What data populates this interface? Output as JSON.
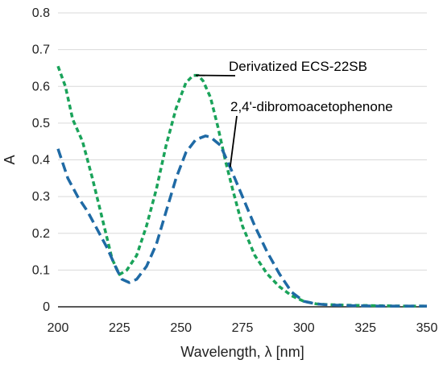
{
  "chart_data": {
    "type": "line",
    "xlabel": "Wavelength, λ [nm]",
    "ylabel": "A",
    "xlim": [
      200,
      350
    ],
    "ylim": [
      0,
      0.8
    ],
    "x_ticks": [
      "200",
      "225",
      "250",
      "275",
      "300",
      "325",
      "350"
    ],
    "y_ticks": [
      "0",
      "0.1",
      "0.2",
      "0.3",
      "0.4",
      "0.5",
      "0.6",
      "0.7",
      "0.8"
    ],
    "grid": "horizontal",
    "legend": "none",
    "series": [
      {
        "name": "Derivatized ECS-22SB",
        "color": "#1aa35a",
        "style": "dashed",
        "x": [
          200,
          203,
          206,
          210,
          214,
          218,
          222,
          225,
          228,
          232,
          236,
          240,
          244,
          248,
          252,
          255,
          257,
          259,
          262,
          265,
          268,
          271,
          275,
          280,
          285,
          290,
          295,
          300,
          305,
          310,
          320,
          330,
          340,
          350
        ],
        "y": [
          0.655,
          0.6,
          0.51,
          0.45,
          0.35,
          0.24,
          0.13,
          0.088,
          0.1,
          0.14,
          0.22,
          0.32,
          0.44,
          0.54,
          0.61,
          0.63,
          0.63,
          0.615,
          0.57,
          0.49,
          0.4,
          0.32,
          0.22,
          0.14,
          0.09,
          0.055,
          0.03,
          0.015,
          0.008,
          0.006,
          0.004,
          0.003,
          0.002,
          0.002
        ]
      },
      {
        "name": "2,4'-dibromoacetophenone",
        "color": "#1f6aa5",
        "style": "dashed",
        "x": [
          200,
          204,
          208,
          212,
          216,
          220,
          224,
          226,
          229,
          232,
          236,
          240,
          244,
          248,
          252,
          256,
          260,
          262,
          266,
          270,
          275,
          280,
          285,
          290,
          295,
          300,
          305,
          310,
          320,
          330,
          340,
          350
        ],
        "y": [
          0.43,
          0.35,
          0.3,
          0.26,
          0.21,
          0.16,
          0.1,
          0.075,
          0.066,
          0.075,
          0.11,
          0.17,
          0.26,
          0.35,
          0.42,
          0.455,
          0.465,
          0.462,
          0.44,
          0.38,
          0.3,
          0.22,
          0.15,
          0.09,
          0.04,
          0.015,
          0.008,
          0.005,
          0.003,
          0.002,
          0.002,
          0.002
        ]
      }
    ],
    "annotations": [
      {
        "text": "Derivatized ECS-22SB",
        "series": 0,
        "point": [
          256,
          0.63
        ]
      },
      {
        "text": "2,4'-dibromoacetophenone",
        "series": 1,
        "point": [
          270,
          0.38
        ]
      }
    ]
  }
}
